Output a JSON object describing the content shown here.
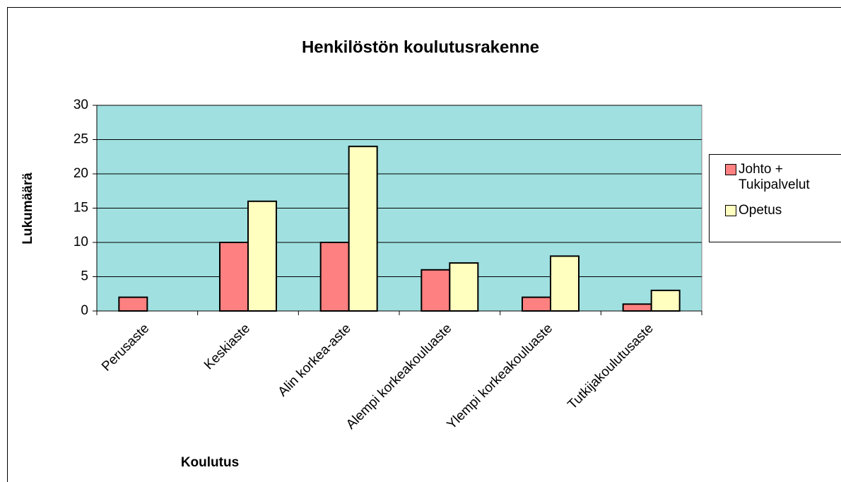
{
  "chart_data": {
    "type": "bar",
    "title": "Henkilöstön koulutusrakenne",
    "x_label": "Koulutus",
    "y_label": "Lukumäärä",
    "categories": [
      "Perusaste",
      "Keskiaste",
      "Alin korkea-aste",
      "Alempi korkeakouluaste",
      "Ylempi korkeakouluaste",
      "Tutkijakoulutusaste"
    ],
    "series": [
      {
        "name": "Johto + Tukipalvelut",
        "color": "#ff8080",
        "values": [
          2,
          10,
          10,
          6,
          2,
          1
        ]
      },
      {
        "name": "Opetus",
        "color": "#ffffc0",
        "values": [
          0,
          16,
          24,
          7,
          8,
          3
        ]
      }
    ],
    "ylim": [
      0,
      30
    ],
    "yticks": [
      0,
      5,
      10,
      15,
      20,
      25,
      30
    ],
    "grid": true,
    "plot_background": "#a0e0e0",
    "legend": "right"
  }
}
